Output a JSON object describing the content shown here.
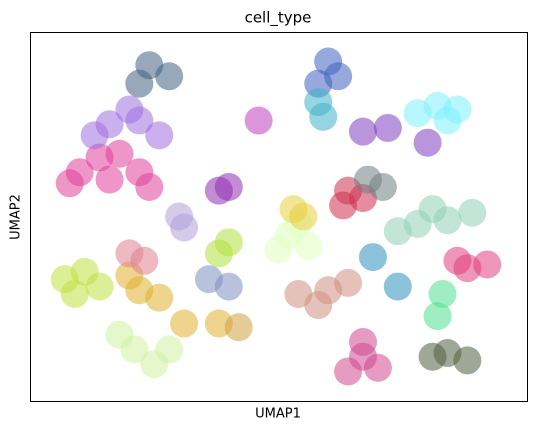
{
  "chart_data": {
    "type": "scatter",
    "title": "cell_type",
    "x_label": "UMAP1",
    "y_label": "UMAP2",
    "xlim": [
      0,
      100
    ],
    "ylim": [
      0,
      100
    ],
    "series": [
      {
        "color": "#e0409a",
        "x": [
          10,
          16,
          22,
          18,
          14,
          24,
          8
        ],
        "y": [
          62,
          60,
          62,
          67,
          66,
          58,
          59
        ]
      },
      {
        "color": "#a070e0",
        "x": [
          16,
          22,
          26,
          13,
          20
        ],
        "y": [
          75,
          76,
          72,
          72,
          79
        ]
      },
      {
        "color": "#406080",
        "x": [
          24,
          28,
          22
        ],
        "y": [
          91,
          88,
          86
        ]
      },
      {
        "color": "#c0e040",
        "x": [
          7,
          11,
          14,
          9
        ],
        "y": [
          33,
          35,
          31,
          29
        ]
      },
      {
        "color": "#e0b030",
        "x": [
          22,
          26,
          20,
          31,
          38
        ],
        "y": [
          30,
          28,
          34,
          21,
          21
        ]
      },
      {
        "color": "#d0f0a0",
        "x": [
          21,
          25,
          18,
          28
        ],
        "y": [
          14,
          10,
          18,
          14
        ]
      },
      {
        "color": "#e08090",
        "x": [
          20,
          23
        ],
        "y": [
          40,
          38
        ]
      },
      {
        "color": "#b0a0d8",
        "x": [
          31,
          30
        ],
        "y": [
          47,
          50
        ]
      },
      {
        "color": "#8090c0",
        "x": [
          40,
          36
        ],
        "y": [
          31,
          33
        ]
      },
      {
        "color": "#80f0ff",
        "x": [
          82,
          86,
          78,
          84
        ],
        "y": [
          80,
          79,
          78,
          76
        ]
      },
      {
        "color": "#d04890",
        "x": [
          67,
          64,
          70,
          67
        ],
        "y": [
          12,
          8,
          9,
          16
        ]
      },
      {
        "color": "#90d0b8",
        "x": [
          84,
          78,
          89,
          74,
          81
        ],
        "y": [
          49,
          48,
          51,
          46,
          52
        ]
      },
      {
        "color": "#e0ffc0",
        "x": [
          52,
          56,
          50,
          54
        ],
        "y": [
          45,
          42,
          41,
          48
        ]
      },
      {
        "color": "#e8d040",
        "x": [
          53,
          55
        ],
        "y": [
          52,
          50
        ]
      },
      {
        "color": "#d09080",
        "x": [
          54,
          60,
          64,
          58
        ],
        "y": [
          29,
          30,
          32,
          26
        ]
      },
      {
        "color": "#d03050",
        "x": [
          64,
          67,
          63
        ],
        "y": [
          57,
          55,
          53
        ]
      },
      {
        "color": "#4060c0",
        "x": [
          60,
          58,
          62
        ],
        "y": [
          92,
          86,
          88
        ]
      },
      {
        "color": "#8040c0",
        "x": [
          72,
          67,
          80
        ],
        "y": [
          74,
          73,
          70
        ]
      },
      {
        "color": "#40b0c8",
        "x": [
          59,
          58
        ],
        "y": [
          77,
          81
        ]
      },
      {
        "color": "#9030b0",
        "x": [
          38,
          40
        ],
        "y": [
          57,
          58
        ]
      },
      {
        "color": "#708080",
        "x": [
          68,
          71
        ],
        "y": [
          60,
          58
        ]
      },
      {
        "color": "#e04080",
        "x": [
          92,
          86,
          88
        ],
        "y": [
          37,
          38,
          36
        ]
      },
      {
        "color": "#3090c0",
        "x": [
          69,
          74
        ],
        "y": [
          39,
          31
        ]
      },
      {
        "color": "#50e090",
        "x": [
          83,
          82
        ],
        "y": [
          29,
          23
        ]
      },
      {
        "color": "#506040",
        "x": [
          81,
          84,
          88
        ],
        "y": [
          12,
          13,
          11
        ]
      },
      {
        "color": "#d0a040",
        "x": [
          42
        ],
        "y": [
          20
        ]
      },
      {
        "color": "#b0e040",
        "x": [
          38,
          40
        ],
        "y": [
          40,
          43
        ]
      },
      {
        "color": "#c040c0",
        "x": [
          46
        ],
        "y": [
          76
        ]
      }
    ]
  }
}
